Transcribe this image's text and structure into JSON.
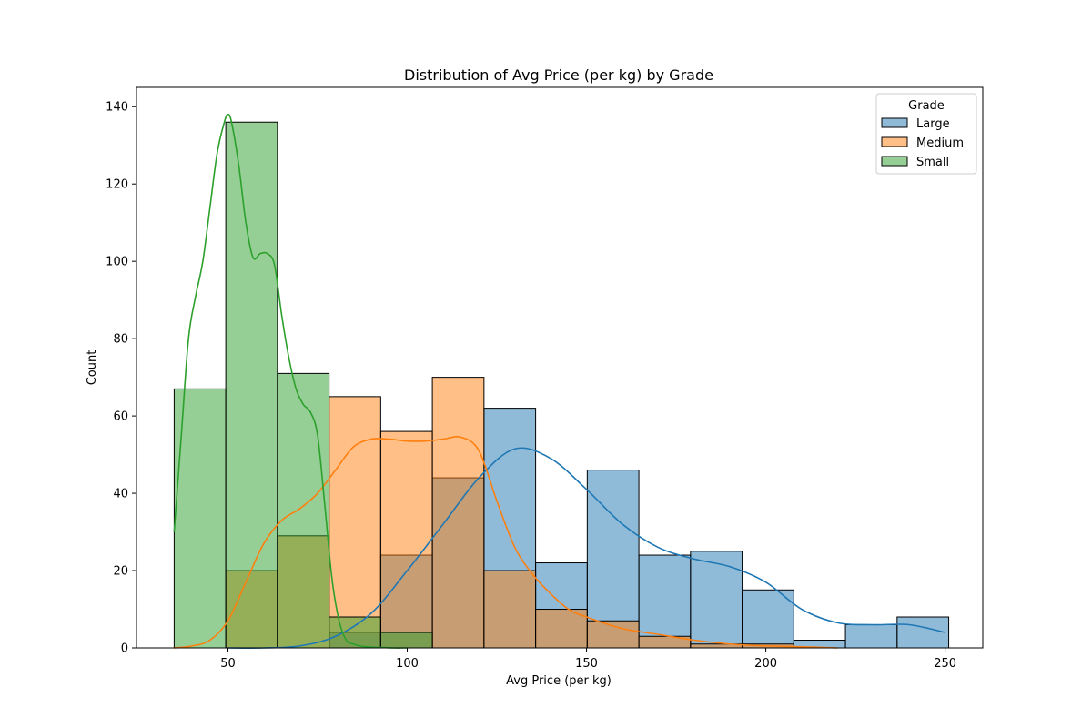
{
  "chart_data": {
    "type": "histogram",
    "title": "Distribution of Avg Price (per kg) by Grade",
    "xlabel": "Avg Price (per kg)",
    "ylabel": "Count",
    "xlim": [
      24.5,
      260.5
    ],
    "ylim": [
      0,
      145
    ],
    "x_ticks": [
      50,
      100,
      150,
      200,
      250
    ],
    "y_ticks": [
      0,
      20,
      40,
      60,
      80,
      100,
      120,
      140
    ],
    "bin_edges": [
      35,
      49.4,
      63.8,
      78.2,
      92.6,
      107,
      121.4,
      135.8,
      150.2,
      164.6,
      179,
      193.4,
      207.8,
      222.2,
      236.6,
      251
    ],
    "legend": {
      "title": "Grade",
      "position": "top-right"
    },
    "kde_shown": true,
    "series": [
      {
        "name": "Large",
        "color": "#1f77b4",
        "fill": "#8fb9da",
        "counts": [
          0,
          0,
          0,
          4,
          24,
          44,
          62,
          22,
          46,
          24,
          25,
          15,
          2,
          6,
          8
        ],
        "kde_x": [
          50,
          60,
          70,
          80,
          90,
          100,
          110,
          120,
          130,
          140,
          150,
          160,
          170,
          180,
          190,
          200,
          210,
          220,
          230,
          240,
          250
        ],
        "kde_y": [
          0,
          0,
          0.5,
          3,
          9,
          20,
          32,
          44,
          51.5,
          49,
          41,
          32,
          26,
          23,
          21,
          17,
          10,
          6.5,
          6,
          6,
          4
        ]
      },
      {
        "name": "Medium",
        "color": "#ff7f0e",
        "fill": "#ffbb82",
        "counts": [
          0,
          20,
          29,
          65,
          56,
          70,
          20,
          10,
          7,
          3,
          1,
          1,
          0,
          0,
          0
        ],
        "kde_x": [
          35,
          40,
          45,
          50,
          55,
          60,
          65,
          70,
          75,
          80,
          85,
          90,
          95,
          100,
          105,
          110,
          115,
          120,
          125,
          130,
          135,
          140,
          145,
          150,
          160,
          170,
          180,
          190,
          200,
          210,
          220
        ],
        "kde_y": [
          0,
          0.5,
          2,
          7,
          17,
          27,
          33,
          36,
          40,
          46,
          52,
          54,
          54,
          53.5,
          53.5,
          54,
          54.5,
          51,
          38,
          26,
          19,
          14,
          10,
          8,
          5,
          3.5,
          2,
          1,
          0.5,
          0.3,
          0
        ]
      },
      {
        "name": "Small",
        "color": "#2ca02c",
        "fill": "#98d092",
        "counts": [
          67,
          136,
          71,
          8,
          4,
          0,
          0,
          0,
          0,
          0,
          0,
          0,
          0,
          0,
          0
        ],
        "kde_x": [
          35,
          37,
          39,
          41,
          43,
          45,
          47,
          49,
          50,
          51,
          53,
          55,
          57,
          59,
          61,
          63,
          65,
          67,
          69,
          71,
          73,
          75,
          77,
          79,
          81,
          83,
          85,
          87,
          90,
          93,
          96,
          100
        ],
        "kde_y": [
          30,
          55,
          80,
          91,
          100,
          114,
          128,
          136,
          138,
          136,
          125,
          110,
          101,
          102,
          102,
          99,
          86,
          75,
          67,
          63,
          61,
          55,
          37,
          18,
          7,
          2,
          1,
          0.5,
          0.2,
          0.1,
          0,
          0
        ]
      }
    ]
  }
}
